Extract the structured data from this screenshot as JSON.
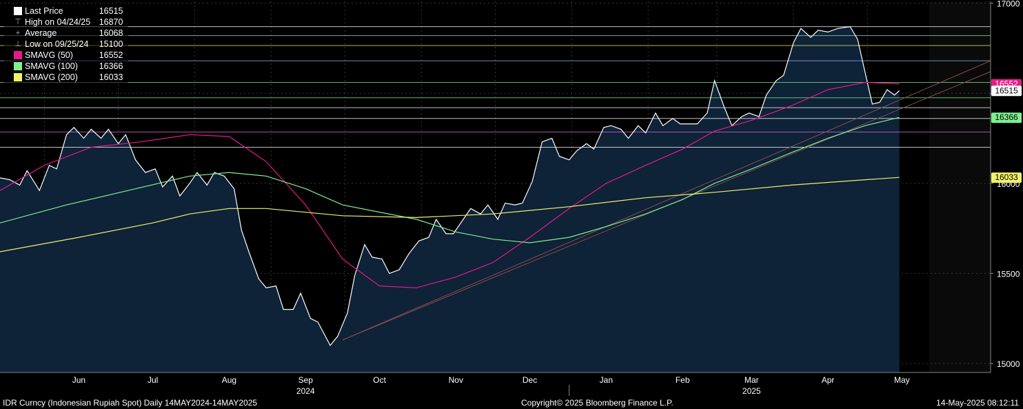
{
  "legend": [
    {
      "label": "Last Price",
      "value": "16515",
      "color": "#ffffff",
      "style": "box"
    },
    {
      "label": "High on 04/24/25",
      "value": "16870",
      "color": "#aaaaaa",
      "style": "tee-top"
    },
    {
      "label": "Average",
      "value": "16068",
      "color": "#aaaaaa",
      "style": "plus"
    },
    {
      "label": "Low on 09/25/24",
      "value": "15100",
      "color": "#aaaaaa",
      "style": "tee-bottom"
    },
    {
      "label": "SMAVG (50)",
      "value": "16552",
      "color": "#e8188a",
      "style": "box"
    },
    {
      "label": "SMAVG (100)",
      "value": "16366",
      "color": "#7ef090",
      "style": "box"
    },
    {
      "label": "SMAVG (200)",
      "value": "16033",
      "color": "#f2f26a",
      "style": "box"
    }
  ],
  "footer": {
    "left": "IDR Curncy (Indonesian Rupiah Spot)  Daily 14MAY2024-14MAY2025",
    "center": "Copyright© 2025 Bloomberg Finance L.P.",
    "right": "14-May-2025 08:12:11"
  },
  "price_tags": [
    {
      "text": "16552",
      "value": 16552,
      "bg": "#e8188a",
      "fg": "#ffffff"
    },
    {
      "text": "16515",
      "value": 16515,
      "bg": "#ffffff",
      "fg": "#000000"
    },
    {
      "text": "16366",
      "value": 16366,
      "bg": "#7ef090",
      "fg": "#000000"
    },
    {
      "text": "16033",
      "value": 16033,
      "bg": "#f2f26a",
      "fg": "#000000"
    }
  ],
  "colors": {
    "area": "#0e2238",
    "price": "#ffffff",
    "sma50": "#e8188a",
    "sma100": "#7ef090",
    "sma200": "#f2f26a",
    "grid": "#3a3a3a",
    "trend": "#8c4a4a"
  },
  "chart_data": {
    "type": "area",
    "title": "IDR Curncy (Indonesian Rupiah Spot)",
    "ylim": [
      14950,
      17010
    ],
    "y_ticks": [
      15000,
      15500,
      16000,
      16500,
      17000
    ],
    "y_tick_labels": [
      "15000",
      "15500",
      "16000",
      "",
      "17000"
    ],
    "x_range": [
      "2024-05-14",
      "2025-06-20"
    ],
    "months": [
      {
        "label": "Jun",
        "date": "2024-06-15"
      },
      {
        "label": "Jul",
        "date": "2024-07-15"
      },
      {
        "label": "Aug",
        "date": "2024-08-15"
      },
      {
        "label": "Sep",
        "date": "2024-09-15"
      },
      {
        "label": "Oct",
        "date": "2024-10-15"
      },
      {
        "label": "Nov",
        "date": "2024-11-15"
      },
      {
        "label": "Dec",
        "date": "2024-12-15"
      },
      {
        "label": "Jan",
        "date": "2025-01-15"
      },
      {
        "label": "Feb",
        "date": "2025-02-15"
      },
      {
        "label": "Mar",
        "date": "2025-03-15"
      },
      {
        "label": "Apr",
        "date": "2025-04-15"
      },
      {
        "label": "May",
        "date": "2025-05-15"
      }
    ],
    "year_labels": [
      {
        "label": "2024",
        "date": "2024-09-15"
      },
      {
        "label": "2025",
        "date": "2025-03-15"
      }
    ],
    "horizontal_levels": [
      16870,
      16820,
      16765,
      16680,
      16560,
      16475,
      16420,
      16360,
      16285,
      16200
    ],
    "series": [
      {
        "name": "Last Price",
        "points": [
          [
            "2024-05-14",
            16030
          ],
          [
            "2024-05-18",
            16020
          ],
          [
            "2024-05-22",
            15990
          ],
          [
            "2024-05-25",
            16070
          ],
          [
            "2024-05-30",
            15960
          ],
          [
            "2024-06-03",
            16100
          ],
          [
            "2024-06-06",
            16080
          ],
          [
            "2024-06-10",
            16270
          ],
          [
            "2024-06-13",
            16310
          ],
          [
            "2024-06-17",
            16250
          ],
          [
            "2024-06-20",
            16300
          ],
          [
            "2024-06-24",
            16250
          ],
          [
            "2024-06-27",
            16300
          ],
          [
            "2024-07-01",
            16220
          ],
          [
            "2024-07-04",
            16270
          ],
          [
            "2024-07-08",
            16130
          ],
          [
            "2024-07-12",
            16060
          ],
          [
            "2024-07-16",
            16080
          ],
          [
            "2024-07-19",
            15980
          ],
          [
            "2024-07-23",
            16040
          ],
          [
            "2024-07-26",
            15930
          ],
          [
            "2024-07-30",
            16000
          ],
          [
            "2024-08-02",
            16060
          ],
          [
            "2024-08-06",
            15990
          ],
          [
            "2024-08-09",
            16060
          ],
          [
            "2024-08-13",
            16040
          ],
          [
            "2024-08-17",
            15970
          ],
          [
            "2024-08-20",
            15740
          ],
          [
            "2024-08-23",
            15620
          ],
          [
            "2024-08-27",
            15470
          ],
          [
            "2024-08-30",
            15420
          ],
          [
            "2024-09-03",
            15430
          ],
          [
            "2024-09-06",
            15300
          ],
          [
            "2024-09-10",
            15300
          ],
          [
            "2024-09-13",
            15390
          ],
          [
            "2024-09-17",
            15250
          ],
          [
            "2024-09-20",
            15230
          ],
          [
            "2024-09-25",
            15100
          ],
          [
            "2024-09-28",
            15150
          ],
          [
            "2024-10-02",
            15280
          ],
          [
            "2024-10-05",
            15490
          ],
          [
            "2024-10-09",
            15660
          ],
          [
            "2024-10-12",
            15590
          ],
          [
            "2024-10-16",
            15580
          ],
          [
            "2024-10-19",
            15500
          ],
          [
            "2024-10-23",
            15520
          ],
          [
            "2024-10-27",
            15610
          ],
          [
            "2024-10-31",
            15680
          ],
          [
            "2024-11-04",
            15700
          ],
          [
            "2024-11-07",
            15800
          ],
          [
            "2024-11-11",
            15720
          ],
          [
            "2024-11-14",
            15720
          ],
          [
            "2024-11-18",
            15800
          ],
          [
            "2024-11-21",
            15860
          ],
          [
            "2024-11-25",
            15830
          ],
          [
            "2024-11-28",
            15880
          ],
          [
            "2024-12-02",
            15800
          ],
          [
            "2024-12-05",
            15890
          ],
          [
            "2024-12-09",
            15880
          ],
          [
            "2024-12-12",
            15890
          ],
          [
            "2024-12-16",
            16010
          ],
          [
            "2024-12-20",
            16230
          ],
          [
            "2024-12-24",
            16250
          ],
          [
            "2024-12-27",
            16150
          ],
          [
            "2024-12-31",
            16130
          ],
          [
            "2025-01-03",
            16180
          ],
          [
            "2025-01-07",
            16220
          ],
          [
            "2025-01-10",
            16190
          ],
          [
            "2025-01-14",
            16310
          ],
          [
            "2025-01-17",
            16320
          ],
          [
            "2025-01-21",
            16300
          ],
          [
            "2025-01-24",
            16250
          ],
          [
            "2025-01-28",
            16320
          ],
          [
            "2025-01-31",
            16280
          ],
          [
            "2025-02-04",
            16390
          ],
          [
            "2025-02-07",
            16320
          ],
          [
            "2025-02-11",
            16360
          ],
          [
            "2025-02-14",
            16330
          ],
          [
            "2025-02-18",
            16330
          ],
          [
            "2025-02-21",
            16330
          ],
          [
            "2025-02-25",
            16390
          ],
          [
            "2025-02-28",
            16570
          ],
          [
            "2025-03-04",
            16420
          ],
          [
            "2025-03-07",
            16320
          ],
          [
            "2025-03-11",
            16370
          ],
          [
            "2025-03-14",
            16390
          ],
          [
            "2025-03-18",
            16370
          ],
          [
            "2025-03-21",
            16490
          ],
          [
            "2025-03-25",
            16570
          ],
          [
            "2025-03-28",
            16600
          ],
          [
            "2025-04-01",
            16780
          ],
          [
            "2025-04-04",
            16860
          ],
          [
            "2025-04-08",
            16810
          ],
          [
            "2025-04-11",
            16850
          ],
          [
            "2025-04-15",
            16840
          ],
          [
            "2025-04-19",
            16860
          ],
          [
            "2025-04-24",
            16870
          ],
          [
            "2025-04-27",
            16800
          ],
          [
            "2025-04-30",
            16620
          ],
          [
            "2025-05-03",
            16440
          ],
          [
            "2025-05-06",
            16450
          ],
          [
            "2025-05-09",
            16520
          ],
          [
            "2025-05-12",
            16490
          ],
          [
            "2025-05-14",
            16515
          ]
        ]
      },
      {
        "name": "SMAVG (50)",
        "points": [
          [
            "2024-05-14",
            15960
          ],
          [
            "2024-06-01",
            16100
          ],
          [
            "2024-06-20",
            16200
          ],
          [
            "2024-07-10",
            16230
          ],
          [
            "2024-07-30",
            16270
          ],
          [
            "2024-08-15",
            16260
          ],
          [
            "2024-08-30",
            16120
          ],
          [
            "2024-09-15",
            15880
          ],
          [
            "2024-09-30",
            15580
          ],
          [
            "2024-10-15",
            15430
          ],
          [
            "2024-10-30",
            15420
          ],
          [
            "2024-11-15",
            15480
          ],
          [
            "2024-11-30",
            15560
          ],
          [
            "2024-12-15",
            15700
          ],
          [
            "2024-12-31",
            15860
          ],
          [
            "2025-01-15",
            16000
          ],
          [
            "2025-01-31",
            16100
          ],
          [
            "2025-02-15",
            16190
          ],
          [
            "2025-02-28",
            16290
          ],
          [
            "2025-03-15",
            16350
          ],
          [
            "2025-03-31",
            16430
          ],
          [
            "2025-04-15",
            16520
          ],
          [
            "2025-04-30",
            16560
          ],
          [
            "2025-05-14",
            16552
          ]
        ]
      },
      {
        "name": "SMAVG (100)",
        "points": [
          [
            "2024-05-14",
            15780
          ],
          [
            "2024-06-10",
            15880
          ],
          [
            "2024-07-05",
            15960
          ],
          [
            "2024-07-30",
            16040
          ],
          [
            "2024-08-15",
            16060
          ],
          [
            "2024-08-30",
            16040
          ],
          [
            "2024-09-15",
            15970
          ],
          [
            "2024-09-30",
            15880
          ],
          [
            "2024-10-15",
            15840
          ],
          [
            "2024-10-30",
            15800
          ],
          [
            "2024-11-15",
            15730
          ],
          [
            "2024-11-30",
            15690
          ],
          [
            "2024-12-15",
            15670
          ],
          [
            "2024-12-31",
            15700
          ],
          [
            "2025-01-15",
            15760
          ],
          [
            "2025-01-31",
            15830
          ],
          [
            "2025-02-15",
            15910
          ],
          [
            "2025-02-28",
            16000
          ],
          [
            "2025-03-15",
            16080
          ],
          [
            "2025-03-31",
            16170
          ],
          [
            "2025-04-15",
            16250
          ],
          [
            "2025-04-30",
            16320
          ],
          [
            "2025-05-14",
            16366
          ]
        ]
      },
      {
        "name": "SMAVG (200)",
        "points": [
          [
            "2024-05-14",
            15620
          ],
          [
            "2024-06-15",
            15700
          ],
          [
            "2024-07-15",
            15780
          ],
          [
            "2024-07-30",
            15830
          ],
          [
            "2024-08-15",
            15860
          ],
          [
            "2024-08-30",
            15860
          ],
          [
            "2024-09-30",
            15820
          ],
          [
            "2024-10-30",
            15810
          ],
          [
            "2024-11-30",
            15830
          ],
          [
            "2024-12-31",
            15870
          ],
          [
            "2025-01-31",
            15920
          ],
          [
            "2025-02-28",
            15950
          ],
          [
            "2025-03-31",
            15990
          ],
          [
            "2025-04-30",
            16020
          ],
          [
            "2025-05-14",
            16033
          ]
        ]
      }
    ],
    "trendlines": [
      {
        "points": [
          [
            "2024-09-30",
            15130
          ],
          [
            "2025-06-20",
            16680
          ]
        ]
      },
      {
        "points": [
          [
            "2024-09-30",
            15130
          ],
          [
            "2025-06-20",
            16620
          ]
        ]
      }
    ]
  }
}
